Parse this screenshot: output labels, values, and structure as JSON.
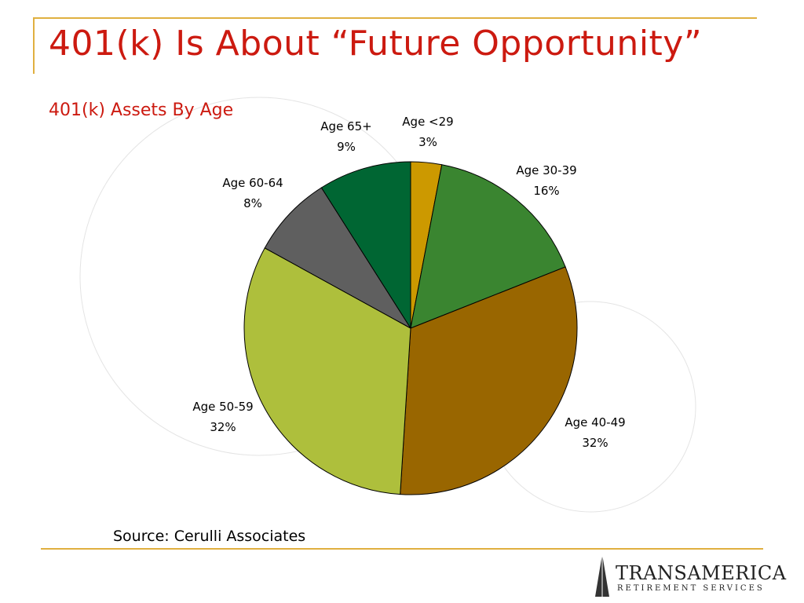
{
  "slide": {
    "title": "401(k) Is About “Future Opportunity”",
    "source": "Source: Cerulli Associates"
  },
  "logo": {
    "name": "TRANSAMERICA",
    "subtitle": "RETIREMENT SERVICES"
  },
  "colors": {
    "title": "#cc1a10",
    "rule": "#e0b040"
  },
  "chart_data": {
    "type": "pie",
    "title": "401(k) Assets By Age",
    "slices": [
      {
        "label": "Age <29",
        "value": 3,
        "display": "3%",
        "color": "#cc9900"
      },
      {
        "label": "Age 30-39",
        "value": 16,
        "display": "16%",
        "color": "#3a8530"
      },
      {
        "label": "Age 40-49",
        "value": 32,
        "display": "32%",
        "color": "#996600"
      },
      {
        "label": "Age 50-59",
        "value": 32,
        "display": "32%",
        "color": "#aebf3c"
      },
      {
        "label": "Age 60-64",
        "value": 8,
        "display": "8%",
        "color": "#5f5f5f"
      },
      {
        "label": "Age 65+",
        "value": 9,
        "display": "9%",
        "color": "#006633"
      }
    ],
    "legend": "none"
  }
}
